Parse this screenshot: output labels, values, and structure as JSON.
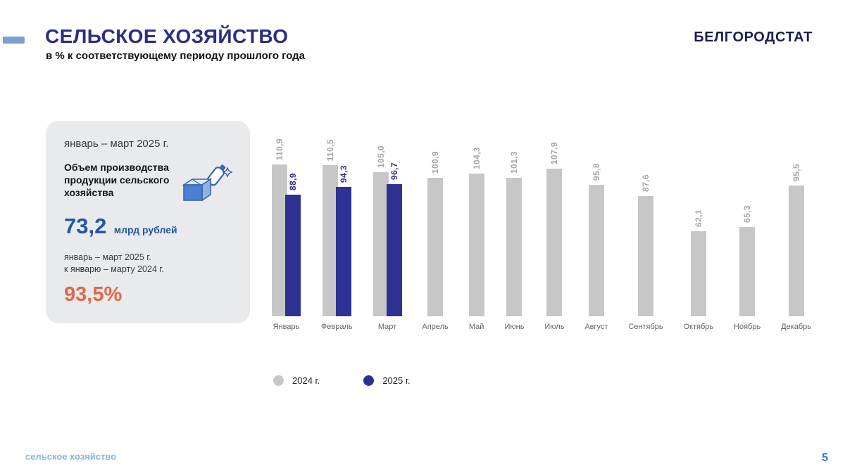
{
  "header": {
    "title": "СЕЛЬСКОЕ ХОЗЯЙСТВО",
    "subtitle": "в % к соответствующему периоду прошлого года",
    "brand": "БЕЛГОРОДСТАТ"
  },
  "card": {
    "period": "январь – март 2025 г.",
    "metric_label": "Объем производства продукции сельского хозяйства",
    "value": "73,2",
    "unit": "млрд рублей",
    "value_color": "#2456a4",
    "compare_line1": "январь – март 2025 г.",
    "compare_line2": "к январю – марту 2024 г.",
    "percent": "93,5%",
    "percent_color": "#e2674a",
    "icon": "milk-carton-icon"
  },
  "chart_data": {
    "type": "bar",
    "categories": [
      "Январь",
      "Февраль",
      "Март",
      "Апрель",
      "Май",
      "Июнь",
      "Июль",
      "Август",
      "Сентябрь",
      "Октябрь",
      "Ноябрь",
      "Декабрь"
    ],
    "series": [
      {
        "name": "2024 г.",
        "color": "#c7c7c7",
        "label_color": "#a6a6a6",
        "values": [
          110.9,
          110.5,
          105.0,
          100.9,
          104.3,
          101.3,
          107.9,
          95.8,
          87.6,
          62.1,
          65.3,
          95.5
        ],
        "labels": [
          "110,9",
          "110,5",
          "105,0",
          "100,9",
          "104,3",
          "101,3",
          "107,9",
          "95,8",
          "87,6",
          "62,1",
          "65,3",
          "95,5"
        ]
      },
      {
        "name": "2025 г.",
        "color": "#2e3192",
        "label_color": "#2e3192",
        "values": [
          88.9,
          94.3,
          96.7,
          null,
          null,
          null,
          null,
          null,
          null,
          null,
          null,
          null
        ],
        "labels": [
          "88,9",
          "94,3",
          "96,7",
          null,
          null,
          null,
          null,
          null,
          null,
          null,
          null,
          null
        ]
      }
    ],
    "ylim": [
      0,
      115
    ],
    "grid": false,
    "legend_position": "bottom-left",
    "value_labels": "rotated-90-above-bars"
  },
  "footer": {
    "label": "сельское хозяйство",
    "page": "5"
  }
}
